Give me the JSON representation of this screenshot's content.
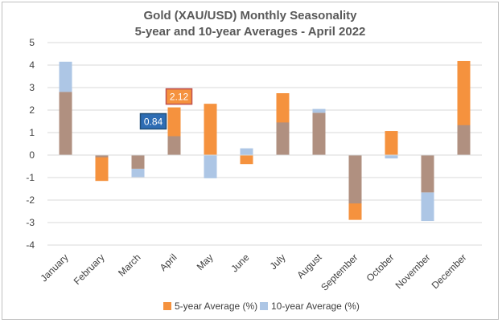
{
  "chart_data": {
    "type": "bar",
    "title": "Gold (XAU/USD) Monthly Seasonality",
    "subtitle": "5-year and 10-year Averages - April 2022",
    "categories": [
      "January",
      "February",
      "March",
      "April",
      "May",
      "June",
      "July",
      "August",
      "September",
      "October",
      "November",
      "December"
    ],
    "series": [
      {
        "name": "5-year Average (%)",
        "color": "#f5923e",
        "values": [
          2.8,
          -1.15,
          -0.6,
          2.12,
          2.28,
          -0.4,
          2.75,
          1.87,
          -2.88,
          1.07,
          -1.65,
          4.18
        ]
      },
      {
        "name": "10-year Average (%)",
        "color": "#adc6e5",
        "values": [
          4.15,
          -0.1,
          -0.98,
          0.84,
          -1.03,
          0.3,
          1.45,
          2.05,
          -2.15,
          -0.15,
          -2.93,
          1.33
        ]
      }
    ],
    "overlap_color": "#b09080",
    "ylim": [
      -4,
      5
    ],
    "yticks": [
      5,
      4,
      3,
      2,
      1,
      0,
      -1,
      -2,
      -3,
      -4
    ],
    "grid": true,
    "legend_position": "bottom",
    "callouts": [
      {
        "category": "April",
        "series": "5-year Average (%)",
        "label": "2.12",
        "fill": "#f5923e",
        "border": "#c0504d"
      },
      {
        "category": "April",
        "series": "10-year Average (%)",
        "label": "0.84",
        "fill": "#2e6db4",
        "border": "#1f4e79"
      }
    ]
  }
}
